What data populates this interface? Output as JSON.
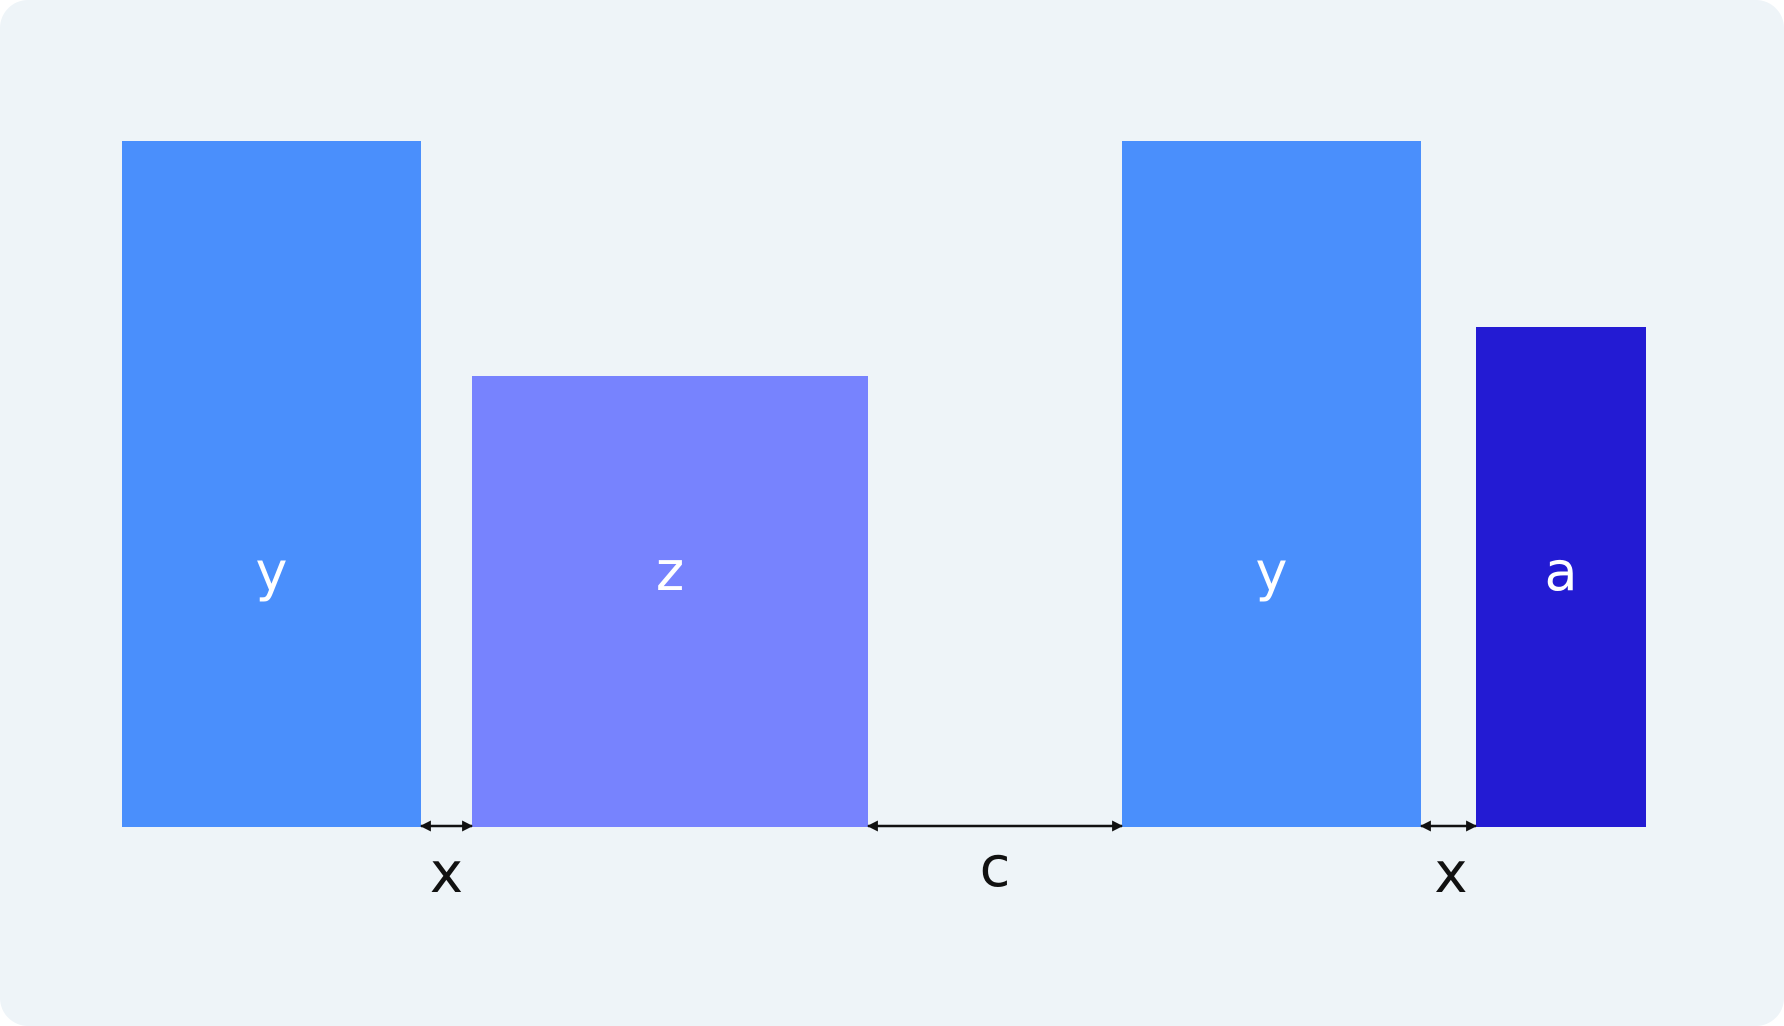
{
  "colors": {
    "background": "#EEF4F8",
    "block_y": "#4A8FFC",
    "block_z": "#7783FE",
    "block_a": "#231BD3",
    "text_on_block": "#FFFFFF",
    "dimension": "#111111"
  },
  "blocks": [
    {
      "id": "y1",
      "label": "y",
      "color_key": "block_y"
    },
    {
      "id": "z",
      "label": "z",
      "color_key": "block_z"
    },
    {
      "id": "y2",
      "label": "y",
      "color_key": "block_y"
    },
    {
      "id": "a",
      "label": "a",
      "color_key": "block_a"
    }
  ],
  "gaps": [
    {
      "id": "gap1",
      "label": "x"
    },
    {
      "id": "gap2",
      "label": "c"
    },
    {
      "id": "gap3",
      "label": "x"
    }
  ]
}
